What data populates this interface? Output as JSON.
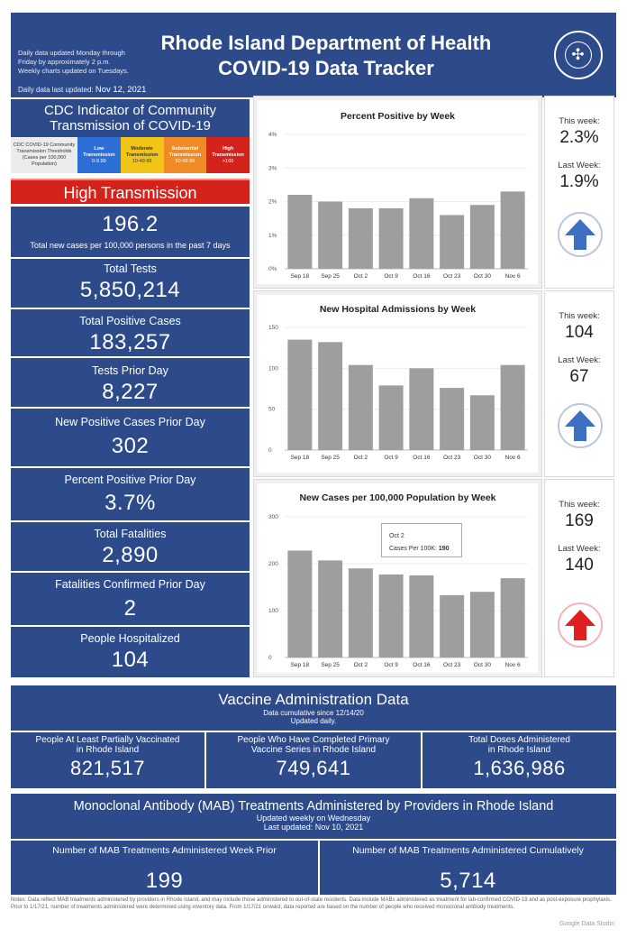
{
  "header": {
    "title_line1": "Rhode Island Department of Health",
    "title_line2": "COVID-19 Data Tracker",
    "note_line1": "Daily data updated Monday through",
    "note_line2": "Friday by approximately 2 p.m.",
    "note_line3": "Weekly charts updated on Tuesdays.",
    "updated_label": "Daily data last updated:",
    "updated_value": "Nov 12, 2021",
    "seal_text": "RHODE ISLAND DEPARTMENT OF HEALTH"
  },
  "cdc": {
    "title_line1": "CDC Indicator of Community",
    "title_line2": "Transmission of COVID-19",
    "legend": [
      {
        "label": "CDC COVID-19 Community Transmission Thresholds (Cases per 100,000 Population)",
        "range": "",
        "color": "#ececec"
      },
      {
        "label": "Low Transmission",
        "range": "0-9.99",
        "color": "#2b6fd6"
      },
      {
        "label": "Moderate Transmission",
        "range": "10-49.99",
        "color": "#f2c417"
      },
      {
        "label": "Substantial Transmission",
        "range": "50-99.99",
        "color": "#ef8a26"
      },
      {
        "label": "High Transmission",
        "range": ">100",
        "color": "#d4231b"
      }
    ],
    "level": "High Transmission"
  },
  "stats": {
    "rate_value": "196.2",
    "rate_label": "Total new cases per 100,000 persons in the past 7 days",
    "total_tests_label": "Total Tests",
    "total_tests": "5,850,214",
    "total_positive_label": "Total Positive Cases",
    "total_positive": "183,257",
    "tests_prior_label": "Tests Prior Day",
    "tests_prior": "8,227",
    "new_pos_label": "New Positive Cases Prior Day",
    "new_pos": "302",
    "pct_pos_label": "Percent Positive Prior Day",
    "pct_pos": "3.7%",
    "fatalities_label": "Total Fatalities",
    "fatalities": "2,890",
    "fatal_prior_label": "Fatalities Confirmed Prior Day",
    "fatal_prior": "2",
    "hosp_label": "People Hospitalized",
    "hosp": "104"
  },
  "side_panels": [
    {
      "this_week_label": "This week:",
      "this_week": "2.3%",
      "last_week_label": "Last Week:",
      "last_week": "1.9%",
      "trend": "up",
      "arrow_color": "#3d6fc2",
      "icon": "arrow-up-icon"
    },
    {
      "this_week_label": "This week:",
      "this_week": "104",
      "last_week_label": "Last Week:",
      "last_week": "67",
      "trend": "up",
      "arrow_color": "#3d6fc2",
      "icon": "arrow-up-icon"
    },
    {
      "this_week_label": "This week:",
      "this_week": "169",
      "last_week_label": "Last Week:",
      "last_week": "140",
      "trend": "up",
      "arrow_color": "#e02020",
      "icon": "arrow-up-icon"
    }
  ],
  "tooltip": {
    "title": "Oct 2",
    "label": "Cases Per 100K:",
    "value": "190"
  },
  "chart_data": [
    {
      "type": "bar",
      "title": "Percent Positive by Week",
      "categories": [
        "Sep 18",
        "Sep 25",
        "Oct 2",
        "Oct 9",
        "Oct 16",
        "Oct 23",
        "Oct 30",
        "Nov 6"
      ],
      "values": [
        2.2,
        2.0,
        1.8,
        1.8,
        2.1,
        1.6,
        1.9,
        2.3
      ],
      "ylim": [
        0,
        4
      ],
      "yticks": [
        "0%",
        "1%",
        "2%",
        "3%",
        "4%"
      ],
      "color": "#9e9e9e"
    },
    {
      "type": "bar",
      "title": "New Hospital Admissions by Week",
      "categories": [
        "Sep 18",
        "Sep 25",
        "Oct 2",
        "Oct 9",
        "Oct 16",
        "Oct 23",
        "Oct 30",
        "Nov 6"
      ],
      "values": [
        135,
        132,
        104,
        79,
        100,
        76,
        67,
        104
      ],
      "ylim": [
        0,
        150
      ],
      "yticks": [
        "0",
        "50",
        "100",
        "150"
      ],
      "color": "#9e9e9e"
    },
    {
      "type": "bar",
      "title": "New Cases per 100,000 Population by Week",
      "categories": [
        "Sep 18",
        "Sep 25",
        "Oct 2",
        "Oct 9",
        "Oct 16",
        "Oct 23",
        "Oct 30",
        "Nov 6"
      ],
      "values": [
        228,
        207,
        190,
        177,
        175,
        133,
        140,
        169
      ],
      "ylim": [
        0,
        300
      ],
      "yticks": [
        "0",
        "100",
        "200",
        "300"
      ],
      "color": "#9e9e9e"
    }
  ],
  "vaccine": {
    "title": "Vaccine Administration Data",
    "sub1": "Data cumulative since 12/14/20",
    "sub2": "Updated daily.",
    "partial_label1": "People At Least Partially Vaccinated",
    "partial_label2": "in Rhode Island",
    "partial": "821,517",
    "complete_label1": "People Who Have Completed Primary",
    "complete_label2": "Vaccine Series in Rhode Island",
    "complete": "749,641",
    "doses_label1": "Total Doses Administered",
    "doses_label2": "in Rhode Island",
    "doses": "1,636,986"
  },
  "mab": {
    "title": "Monoclonal Antibody (MAB) Treatments Administered by Providers in Rhode Island",
    "sub1": "Updated weekly on Wednesday",
    "sub2": "Last updated:  Nov 10, 2021",
    "week_label": "Number of MAB Treatments Administered Week Prior",
    "week": "199",
    "cum_label": "Number of MAB Treatments Administered Cumulatively",
    "cum": "5,714"
  },
  "footer": {
    "notes": "Notes: Data reflect MAB treatments administered by providers in Rhode Island, and may include those administered to out-of-state residents. Data include MABs administered as treatment for lab-confirmed COVID-19 and as post-exposure prophylaxis. Prior to 1/17/21, number of treatments administered were determined using inventory data. From 1/17/21 onward, data reported are based on the number of people who received monoclonal antibody treatments.",
    "brand": "Google Data Studio"
  }
}
